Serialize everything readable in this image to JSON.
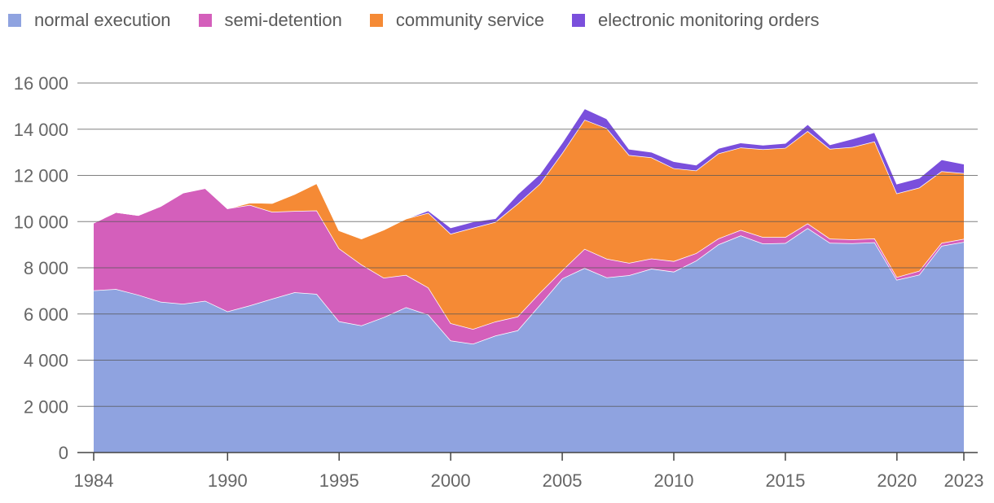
{
  "chart_data": {
    "type": "area",
    "stacked": true,
    "title": "",
    "xlabel": "",
    "ylabel": "",
    "ylim": [
      0,
      16000
    ],
    "yticks": [
      0,
      2000,
      4000,
      6000,
      8000,
      10000,
      12000,
      14000,
      16000
    ],
    "ytick_labels": [
      "0",
      "2 000",
      "4 000",
      "6 000",
      "8 000",
      "10 000",
      "12 000",
      "14 000",
      "16 000"
    ],
    "xticks": [
      1984,
      1990,
      1995,
      2000,
      2005,
      2010,
      2015,
      2020,
      2023
    ],
    "xtick_labels": [
      "1984",
      "1990",
      "1995",
      "2000",
      "2005",
      "2010",
      "2015",
      "2020",
      "2023"
    ],
    "legend_position": "top-left",
    "x": [
      1984,
      1985,
      1986,
      1987,
      1988,
      1989,
      1990,
      1991,
      1992,
      1993,
      1994,
      1995,
      1996,
      1997,
      1998,
      1999,
      2000,
      2001,
      2002,
      2003,
      2004,
      2005,
      2006,
      2007,
      2008,
      2009,
      2010,
      2011,
      2012,
      2013,
      2014,
      2015,
      2016,
      2017,
      2018,
      2019,
      2020,
      2021,
      2022,
      2023
    ],
    "series": [
      {
        "name": "normal execution",
        "color": "#8fa3e0",
        "values": [
          7020,
          7080,
          6830,
          6530,
          6440,
          6570,
          6110,
          6370,
          6660,
          6940,
          6870,
          5680,
          5500,
          5860,
          6290,
          5970,
          4850,
          4710,
          5060,
          5290,
          6400,
          7540,
          7990,
          7580,
          7680,
          7960,
          7830,
          8310,
          9010,
          9400,
          9050,
          9070,
          9720,
          9080,
          9060,
          9100,
          7480,
          7700,
          8950,
          9120
        ]
      },
      {
        "name": "semi-detention",
        "color": "#d45fbb",
        "values": [
          2930,
          3330,
          3450,
          4140,
          4810,
          4880,
          4460,
          4350,
          3760,
          3520,
          3610,
          3160,
          2640,
          1710,
          1400,
          1170,
          750,
          640,
          610,
          600,
          520,
          350,
          830,
          810,
          530,
          440,
          460,
          320,
          260,
          240,
          280,
          260,
          200,
          180,
          170,
          170,
          120,
          170,
          130,
          130
        ]
      },
      {
        "name": "community service",
        "color": "#f58a35",
        "values": [
          0,
          0,
          0,
          0,
          0,
          0,
          0,
          100,
          380,
          730,
          1180,
          780,
          1120,
          2080,
          2440,
          3240,
          3870,
          4380,
          4310,
          4880,
          4720,
          5080,
          5590,
          5650,
          4670,
          4380,
          4020,
          3580,
          3680,
          3570,
          3800,
          3860,
          4000,
          3890,
          4000,
          4200,
          3620,
          3600,
          3100,
          2850
        ]
      },
      {
        "name": "electronic monitoring orders",
        "color": "#7a4fdc",
        "values": [
          0,
          0,
          0,
          0,
          0,
          0,
          0,
          0,
          0,
          0,
          0,
          0,
          0,
          0,
          0,
          100,
          270,
          270,
          160,
          420,
          430,
          460,
          490,
          420,
          270,
          240,
          300,
          250,
          230,
          210,
          190,
          210,
          300,
          190,
          360,
          400,
          420,
          420,
          510,
          400
        ]
      }
    ]
  }
}
